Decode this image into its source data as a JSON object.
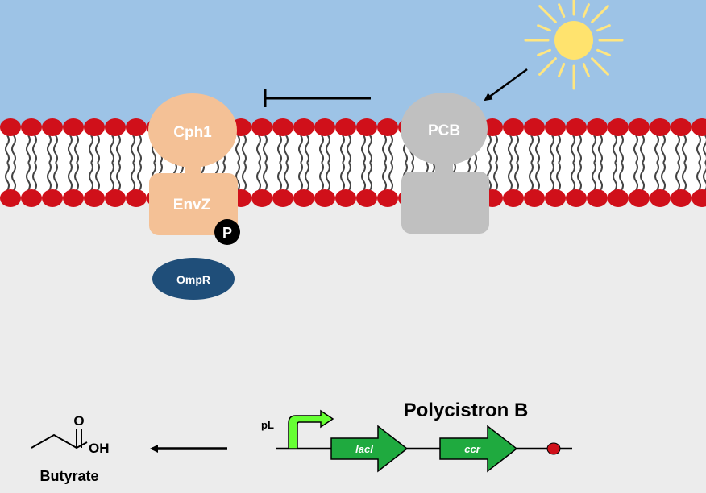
{
  "membrane": {
    "extracellular_color": "#9dc3e6",
    "cytoplasm_color": "#ececec",
    "lipid_head_color": "#d0101a"
  },
  "proteins": {
    "cph1_label": "Cph1",
    "envz_label": "EnvZ",
    "phospho_label": "P",
    "ompr_label": "OmpR",
    "pcb_label": "PCB",
    "cph1_color": "#f4c196",
    "pcb_color": "#c0c0c0",
    "ompr_color": "#1f4e79"
  },
  "genetics": {
    "title": "Polycistron B",
    "promoter_label": "pL",
    "genes": [
      "lacI",
      "ccr"
    ],
    "gene_color": "#1faa3f",
    "promoter_arrow_color": "#66ff33"
  },
  "product": {
    "name": "Butyrate",
    "oh_label": "OH",
    "o_label": "O"
  },
  "icons": [
    "sun-icon",
    "inhibition-arrow",
    "light-arrow",
    "production-arrow",
    "terminator-icon"
  ]
}
